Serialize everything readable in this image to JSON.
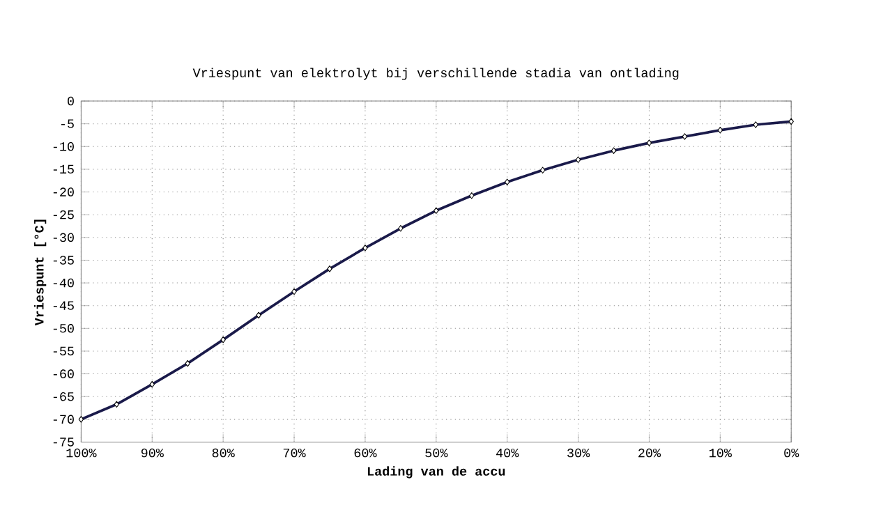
{
  "chart_data": {
    "type": "line",
    "title": "Vriespunt van elektrolyt bij verschillende stadia van ontlading",
    "xlabel": "Lading van de accu",
    "ylabel": "Vriespunt [°C]",
    "x": [
      100,
      95,
      90,
      85,
      80,
      75,
      70,
      65,
      60,
      55,
      50,
      45,
      40,
      35,
      30,
      25,
      20,
      15,
      10,
      5,
      0
    ],
    "series": [
      {
        "color": "#1a1a4a",
        "values": [
          -70,
          -66.7,
          -62.3,
          -57.7,
          -52.5,
          -47.1,
          -41.9,
          -36.9,
          -32.3,
          -28,
          -24.1,
          -20.8,
          -17.8,
          -15.2,
          -12.9,
          -10.9,
          -9.2,
          -7.8,
          -6.4,
          -5.2,
          -4.5
        ]
      }
    ],
    "xlim": [
      100,
      0
    ],
    "xticks": [
      {
        "value": 100,
        "label": "100%"
      },
      {
        "value": 90,
        "label": "90%"
      },
      {
        "value": 80,
        "label": "80%"
      },
      {
        "value": 70,
        "label": "70%"
      },
      {
        "value": 60,
        "label": "60%"
      },
      {
        "value": 50,
        "label": "50%"
      },
      {
        "value": 40,
        "label": "40%"
      },
      {
        "value": 30,
        "label": "30%"
      },
      {
        "value": 20,
        "label": "20%"
      },
      {
        "value": 10,
        "label": "10%"
      },
      {
        "value": 0,
        "label": "0%"
      }
    ],
    "ylim": [
      -75,
      0
    ],
    "yticks": [
      -75,
      -70,
      -65,
      -60,
      -55,
      -50,
      -45,
      -40,
      -35,
      -30,
      -25,
      -20,
      -15,
      -10,
      -5,
      0
    ],
    "grid": true,
    "marker": "diamond",
    "line_style": "solid"
  }
}
